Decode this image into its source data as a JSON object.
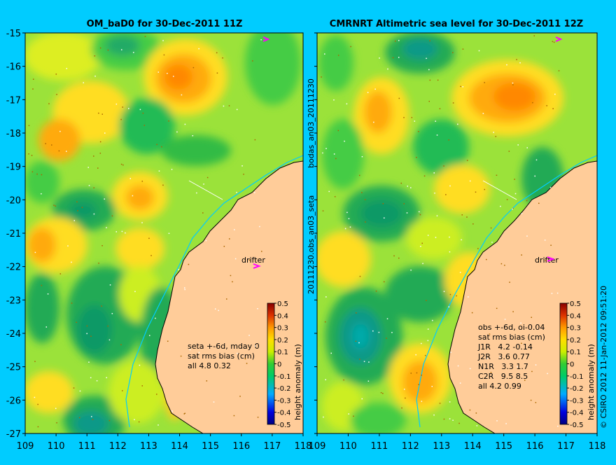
{
  "left_panel": {
    "title": "OM_baD0 for 30-Dec-2011 11Z",
    "stats_lines": [
      "seta +-6d, mday 0",
      "sat rms bias (cm)",
      "all 4.8 0.32"
    ],
    "drifter_label": "drifter"
  },
  "right_panel": {
    "title": "CMRNRT Altimetric sea level  for 30-Dec-2011 12Z",
    "stats_lines": [
      "obs +-6d, oi-0.04",
      "sat rms bias (cm)",
      "J1R   4.2 -0.14",
      "J2R   3.6 0.77",
      "N1R   3.3 1.7",
      "C2R   9.5 8.5",
      "all 4.2 0.99"
    ],
    "drifter_label": "drifter"
  },
  "axes": {
    "lat_ticks": [
      "-15",
      "-16",
      "-17",
      "-18",
      "-19",
      "-20",
      "-21",
      "-22",
      "-23",
      "-24",
      "-25",
      "-26",
      "-27"
    ],
    "lon_ticks": [
      "109",
      "110",
      "111",
      "112",
      "113",
      "114",
      "115",
      "116",
      "117",
      "118"
    ],
    "lat_range": [
      -27,
      -15
    ],
    "lon_range": [
      109,
      118
    ]
  },
  "colorbar": {
    "ticks": [
      "0.5",
      "0.4",
      "0.3",
      "0.2",
      "0.1",
      "0",
      "-0.1",
      "-0.2",
      "-0.3",
      "-0.4",
      "-0.5"
    ],
    "label": "height anomaly (m)",
    "range": [
      -0.5,
      0.5
    ]
  },
  "middle_label": "20111230.obs_an03_seta",
  "middle_label2": "bodas_an03_20111230",
  "credit": "© CSIRO 2012   11-Jan-2012 09:51:20",
  "colors": {
    "background": "#00ccff",
    "land": "#ffcc99",
    "coast_contour": "#00ccff",
    "drifter_marker": "#ff00ff"
  }
}
